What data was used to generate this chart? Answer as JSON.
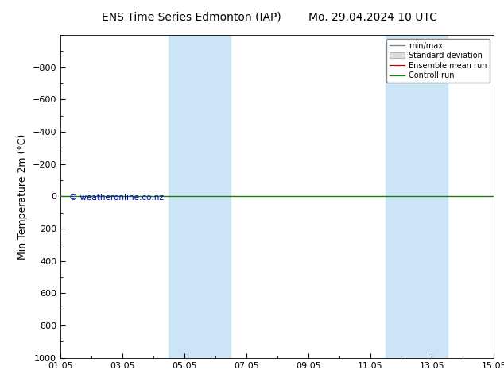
{
  "title_left": "ENS Time Series Edmonton (IAP)",
  "title_right": "Mo. 29.04.2024 10 UTC",
  "ylabel": "Min Temperature 2m (°C)",
  "ylim_bottom": 1000,
  "ylim_top": -1000,
  "yticks": [
    -800,
    -600,
    -400,
    -200,
    0,
    200,
    400,
    600,
    800,
    1000
  ],
  "xlim": [
    0,
    14
  ],
  "xtick_positions": [
    0,
    2,
    4,
    6,
    8,
    10,
    12,
    14
  ],
  "xtick_labels": [
    "01.05",
    "03.05",
    "05.05",
    "07.05",
    "09.05",
    "11.05",
    "13.05",
    "15.05"
  ],
  "blue_bands": [
    [
      3.5,
      4.5
    ],
    [
      4.5,
      5.5
    ],
    [
      10.5,
      11.5
    ],
    [
      11.5,
      12.5
    ]
  ],
  "blue_band_color": "#cce5f6",
  "control_run_y": 0,
  "ensemble_mean_y": 0,
  "control_run_color": "#008800",
  "ensemble_mean_color": "#cc0000",
  "watermark": "© weatheronline.co.nz",
  "watermark_color": "#0000bb",
  "background_color": "#ffffff",
  "title_fontsize": 10,
  "axis_label_fontsize": 9,
  "tick_fontsize": 8,
  "legend_labels": [
    "min/max",
    "Standard deviation",
    "Ensemble mean run",
    "Controll run"
  ],
  "legend_colors": [
    "#888888",
    "#cccccc",
    "#cc0000",
    "#008800"
  ]
}
